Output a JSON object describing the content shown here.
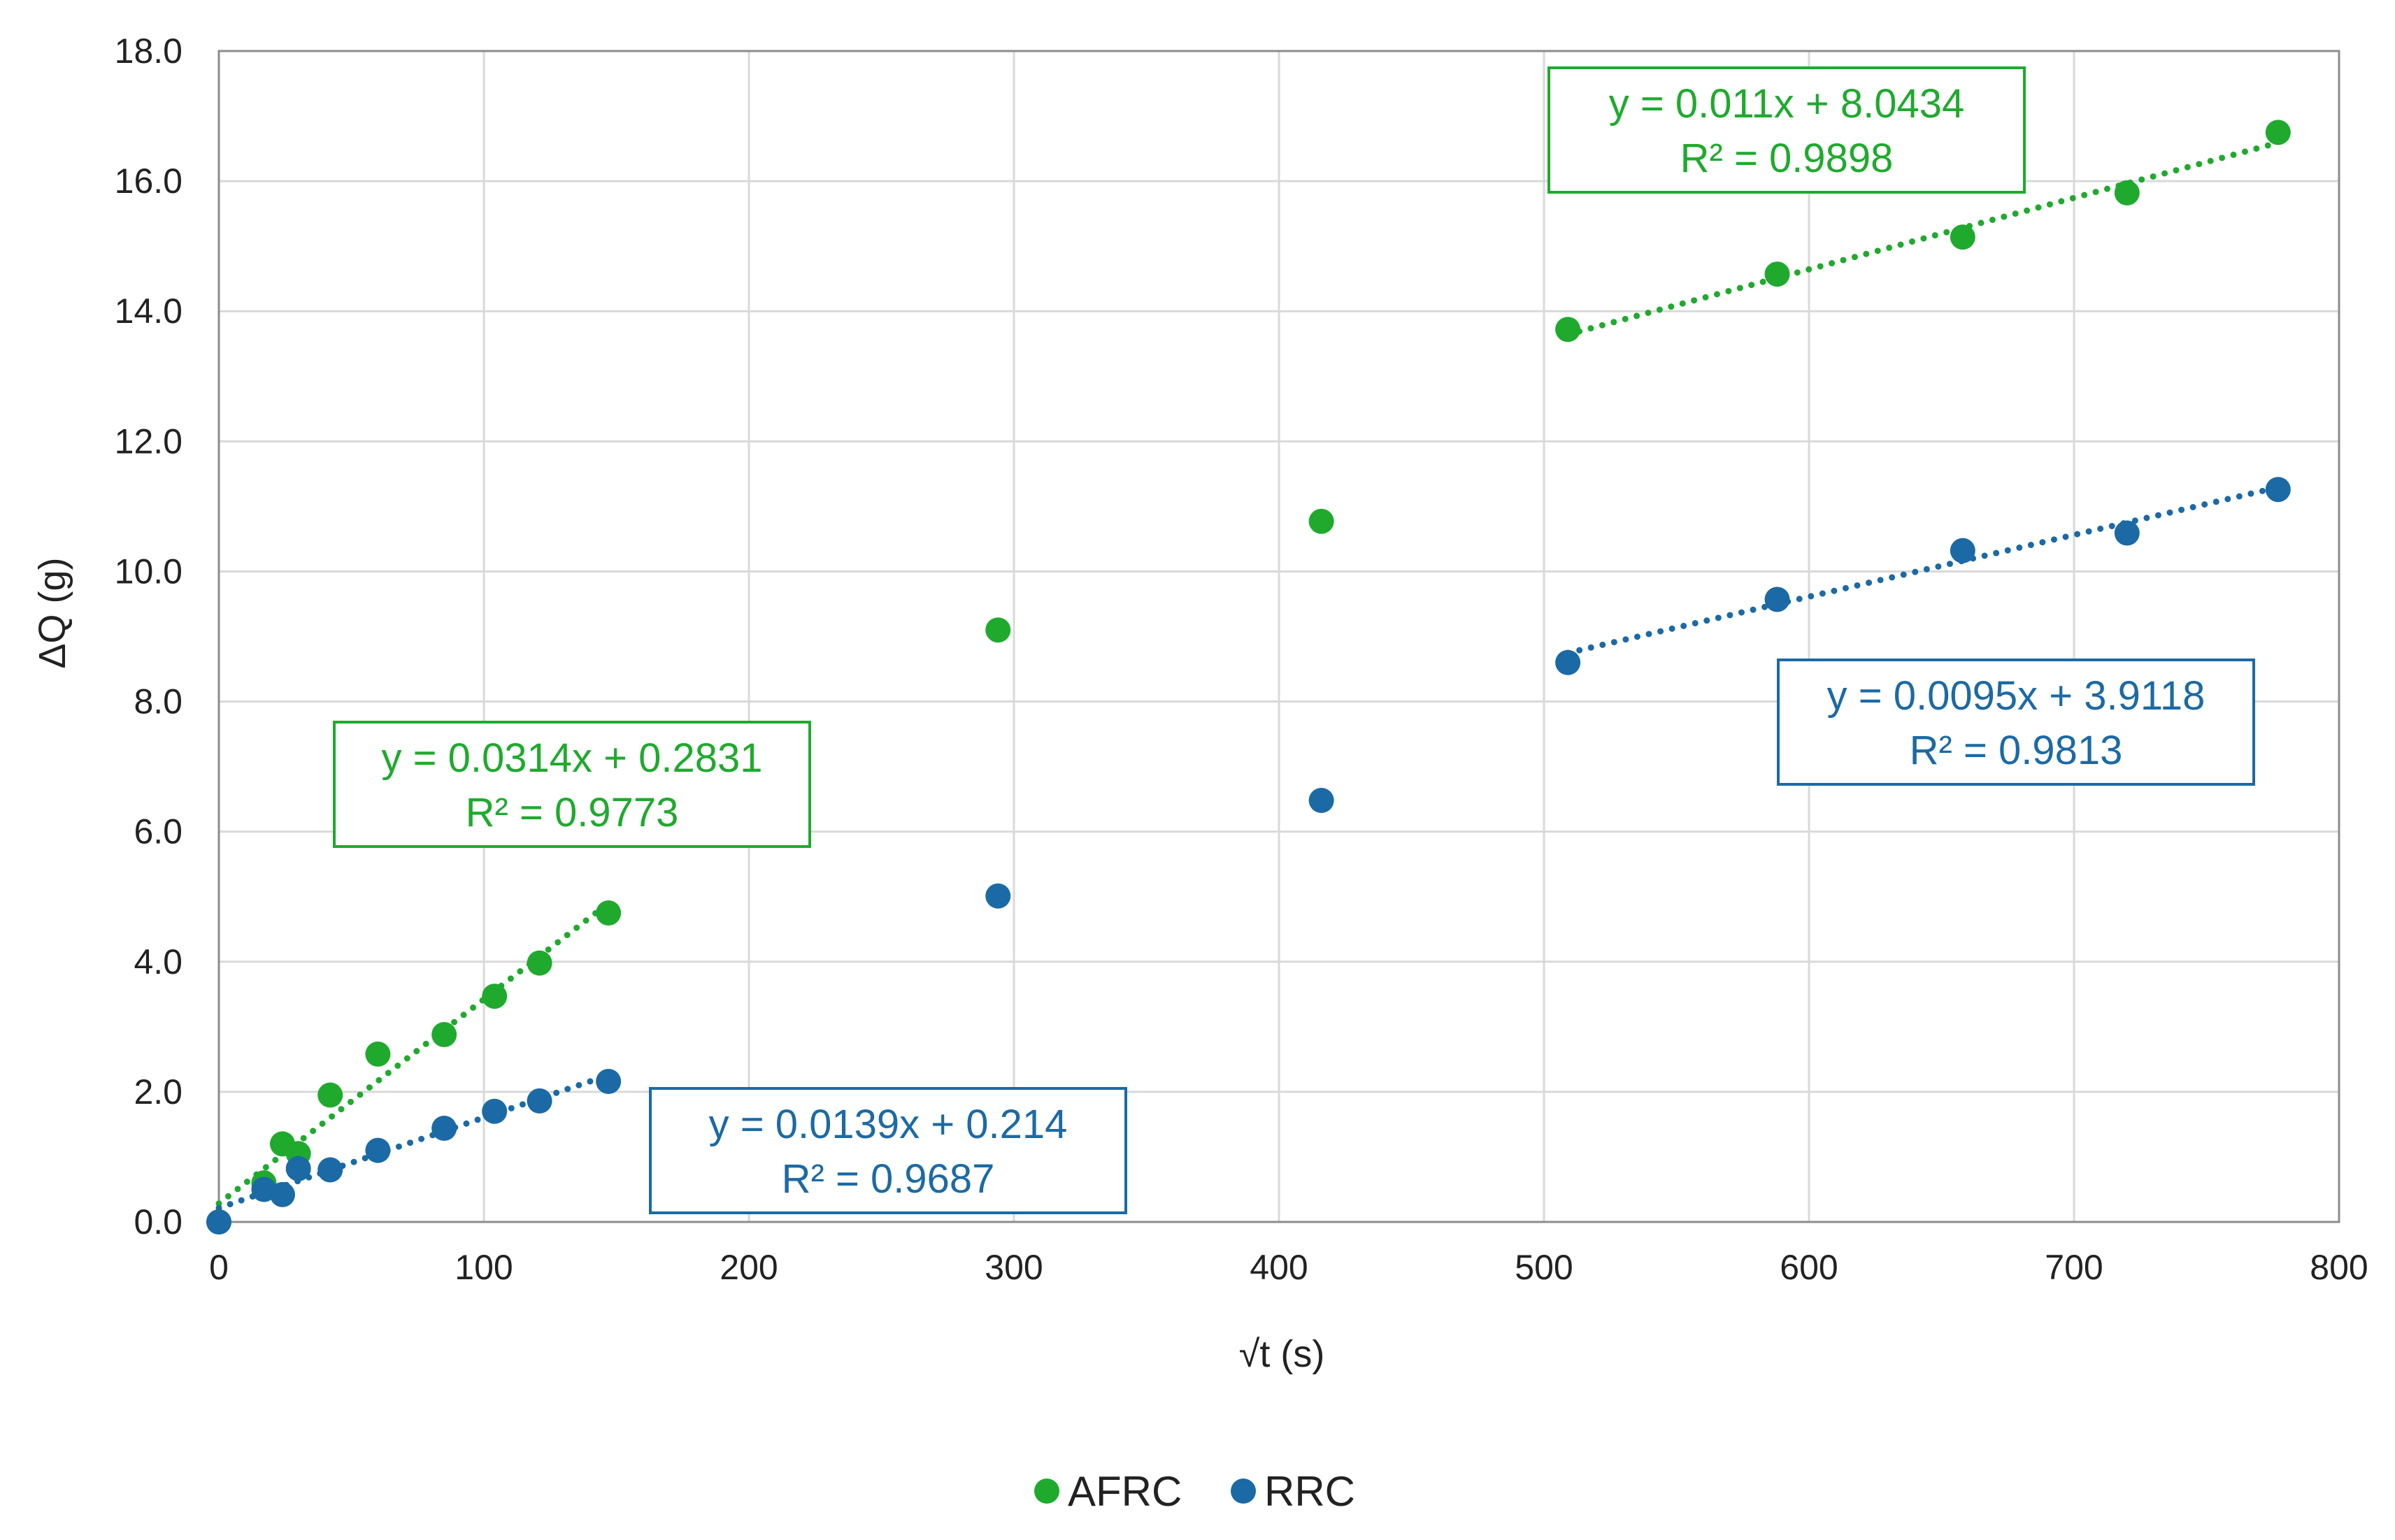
{
  "chart_data": {
    "type": "scatter",
    "title": "",
    "xlabel": "√t (s)",
    "ylabel": "ΔQ (g)",
    "xlim": [
      0,
      800
    ],
    "ylim": [
      0,
      18
    ],
    "x_ticks": [
      "0",
      "100",
      "200",
      "300",
      "400",
      "500",
      "600",
      "700",
      "800"
    ],
    "y_ticks": [
      "0.0",
      "2.0",
      "4.0",
      "6.0",
      "8.0",
      "10.0",
      "12.0",
      "14.0",
      "16.0",
      "18.0"
    ],
    "grid": true,
    "legend_position": "bottom-center",
    "series": [
      {
        "name": "AFRC",
        "color": "#1faa2e",
        "points": [
          [
            0,
            0
          ],
          [
            17,
            0.6
          ],
          [
            24,
            1.2
          ],
          [
            30,
            1.05
          ],
          [
            42,
            1.95
          ],
          [
            60,
            2.58
          ],
          [
            85,
            2.88
          ],
          [
            104,
            3.47
          ],
          [
            121,
            3.98
          ],
          [
            147,
            4.75
          ],
          [
            294,
            9.1
          ],
          [
            416,
            10.77
          ],
          [
            509,
            13.72
          ],
          [
            588,
            14.57
          ],
          [
            658,
            15.14
          ],
          [
            720,
            15.82
          ],
          [
            777,
            16.75
          ]
        ],
        "trendlines": [
          {
            "slope": 0.0314,
            "intercept": 0.2831,
            "x_range": [
              0,
              147
            ],
            "equation": "y = 0.0314x + 0.2831",
            "r2": "R² = 0.9773"
          },
          {
            "slope": 0.011,
            "intercept": 8.0434,
            "x_range": [
              509,
              777
            ],
            "equation": "y = 0.011x + 8.0434",
            "r2": "R² = 0.9898"
          }
        ]
      },
      {
        "name": "RRC",
        "color": "#1b6aa5",
        "points": [
          [
            0,
            0
          ],
          [
            17,
            0.5
          ],
          [
            24,
            0.42
          ],
          [
            30,
            0.82
          ],
          [
            42,
            0.8
          ],
          [
            60,
            1.1
          ],
          [
            85,
            1.44
          ],
          [
            104,
            1.7
          ],
          [
            121,
            1.86
          ],
          [
            147,
            2.16
          ],
          [
            294,
            5.01
          ],
          [
            416,
            6.48
          ],
          [
            509,
            8.6
          ],
          [
            588,
            9.57
          ],
          [
            658,
            10.32
          ],
          [
            720,
            10.59
          ],
          [
            777,
            11.26
          ]
        ],
        "trendlines": [
          {
            "slope": 0.0139,
            "intercept": 0.214,
            "x_range": [
              0,
              147
            ],
            "equation": "y = 0.0139x + 0.214",
            "r2": "R² = 0.9687"
          },
          {
            "slope": 0.0095,
            "intercept": 3.9118,
            "x_range": [
              509,
              777
            ],
            "equation": "y = 0.0095x + 3.9118",
            "r2": "R² = 0.9813"
          }
        ]
      }
    ]
  }
}
